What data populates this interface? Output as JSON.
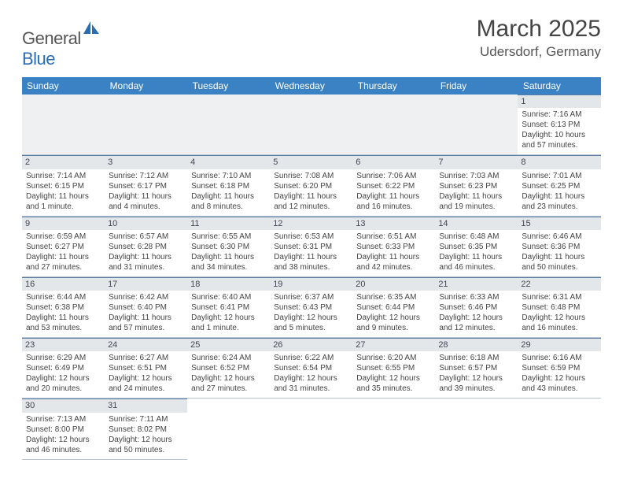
{
  "logo": {
    "text1": "General",
    "text2": "Blue"
  },
  "title": "March 2025",
  "location": "Udersdorf, Germany",
  "colors": {
    "header_bg": "#3b82c4",
    "header_text": "#ffffff",
    "daynum_bg": "#e4e7ea",
    "border": "#b8c4d0",
    "blank_bg": "#eef0f2",
    "text": "#444444",
    "logo_gray": "#555555",
    "logo_blue": "#2a6db5"
  },
  "typography": {
    "title_fontsize": 30,
    "location_fontsize": 17,
    "day_header_fontsize": 12,
    "cell_fontsize": 10,
    "logo_fontsize": 22
  },
  "day_headers": [
    "Sunday",
    "Monday",
    "Tuesday",
    "Wednesday",
    "Thursday",
    "Friday",
    "Saturday"
  ],
  "weeks": [
    [
      {
        "blank": true
      },
      {
        "blank": true
      },
      {
        "blank": true
      },
      {
        "blank": true
      },
      {
        "blank": true
      },
      {
        "blank": true
      },
      {
        "num": "1",
        "sunrise": "Sunrise: 7:16 AM",
        "sunset": "Sunset: 6:13 PM",
        "daylight": "Daylight: 10 hours and 57 minutes."
      }
    ],
    [
      {
        "num": "2",
        "sunrise": "Sunrise: 7:14 AM",
        "sunset": "Sunset: 6:15 PM",
        "daylight": "Daylight: 11 hours and 1 minute."
      },
      {
        "num": "3",
        "sunrise": "Sunrise: 7:12 AM",
        "sunset": "Sunset: 6:17 PM",
        "daylight": "Daylight: 11 hours and 4 minutes."
      },
      {
        "num": "4",
        "sunrise": "Sunrise: 7:10 AM",
        "sunset": "Sunset: 6:18 PM",
        "daylight": "Daylight: 11 hours and 8 minutes."
      },
      {
        "num": "5",
        "sunrise": "Sunrise: 7:08 AM",
        "sunset": "Sunset: 6:20 PM",
        "daylight": "Daylight: 11 hours and 12 minutes."
      },
      {
        "num": "6",
        "sunrise": "Sunrise: 7:06 AM",
        "sunset": "Sunset: 6:22 PM",
        "daylight": "Daylight: 11 hours and 16 minutes."
      },
      {
        "num": "7",
        "sunrise": "Sunrise: 7:03 AM",
        "sunset": "Sunset: 6:23 PM",
        "daylight": "Daylight: 11 hours and 19 minutes."
      },
      {
        "num": "8",
        "sunrise": "Sunrise: 7:01 AM",
        "sunset": "Sunset: 6:25 PM",
        "daylight": "Daylight: 11 hours and 23 minutes."
      }
    ],
    [
      {
        "num": "9",
        "sunrise": "Sunrise: 6:59 AM",
        "sunset": "Sunset: 6:27 PM",
        "daylight": "Daylight: 11 hours and 27 minutes."
      },
      {
        "num": "10",
        "sunrise": "Sunrise: 6:57 AM",
        "sunset": "Sunset: 6:28 PM",
        "daylight": "Daylight: 11 hours and 31 minutes."
      },
      {
        "num": "11",
        "sunrise": "Sunrise: 6:55 AM",
        "sunset": "Sunset: 6:30 PM",
        "daylight": "Daylight: 11 hours and 34 minutes."
      },
      {
        "num": "12",
        "sunrise": "Sunrise: 6:53 AM",
        "sunset": "Sunset: 6:31 PM",
        "daylight": "Daylight: 11 hours and 38 minutes."
      },
      {
        "num": "13",
        "sunrise": "Sunrise: 6:51 AM",
        "sunset": "Sunset: 6:33 PM",
        "daylight": "Daylight: 11 hours and 42 minutes."
      },
      {
        "num": "14",
        "sunrise": "Sunrise: 6:48 AM",
        "sunset": "Sunset: 6:35 PM",
        "daylight": "Daylight: 11 hours and 46 minutes."
      },
      {
        "num": "15",
        "sunrise": "Sunrise: 6:46 AM",
        "sunset": "Sunset: 6:36 PM",
        "daylight": "Daylight: 11 hours and 50 minutes."
      }
    ],
    [
      {
        "num": "16",
        "sunrise": "Sunrise: 6:44 AM",
        "sunset": "Sunset: 6:38 PM",
        "daylight": "Daylight: 11 hours and 53 minutes."
      },
      {
        "num": "17",
        "sunrise": "Sunrise: 6:42 AM",
        "sunset": "Sunset: 6:40 PM",
        "daylight": "Daylight: 11 hours and 57 minutes."
      },
      {
        "num": "18",
        "sunrise": "Sunrise: 6:40 AM",
        "sunset": "Sunset: 6:41 PM",
        "daylight": "Daylight: 12 hours and 1 minute."
      },
      {
        "num": "19",
        "sunrise": "Sunrise: 6:37 AM",
        "sunset": "Sunset: 6:43 PM",
        "daylight": "Daylight: 12 hours and 5 minutes."
      },
      {
        "num": "20",
        "sunrise": "Sunrise: 6:35 AM",
        "sunset": "Sunset: 6:44 PM",
        "daylight": "Daylight: 12 hours and 9 minutes."
      },
      {
        "num": "21",
        "sunrise": "Sunrise: 6:33 AM",
        "sunset": "Sunset: 6:46 PM",
        "daylight": "Daylight: 12 hours and 12 minutes."
      },
      {
        "num": "22",
        "sunrise": "Sunrise: 6:31 AM",
        "sunset": "Sunset: 6:48 PM",
        "daylight": "Daylight: 12 hours and 16 minutes."
      }
    ],
    [
      {
        "num": "23",
        "sunrise": "Sunrise: 6:29 AM",
        "sunset": "Sunset: 6:49 PM",
        "daylight": "Daylight: 12 hours and 20 minutes."
      },
      {
        "num": "24",
        "sunrise": "Sunrise: 6:27 AM",
        "sunset": "Sunset: 6:51 PM",
        "daylight": "Daylight: 12 hours and 24 minutes."
      },
      {
        "num": "25",
        "sunrise": "Sunrise: 6:24 AM",
        "sunset": "Sunset: 6:52 PM",
        "daylight": "Daylight: 12 hours and 27 minutes."
      },
      {
        "num": "26",
        "sunrise": "Sunrise: 6:22 AM",
        "sunset": "Sunset: 6:54 PM",
        "daylight": "Daylight: 12 hours and 31 minutes."
      },
      {
        "num": "27",
        "sunrise": "Sunrise: 6:20 AM",
        "sunset": "Sunset: 6:55 PM",
        "daylight": "Daylight: 12 hours and 35 minutes."
      },
      {
        "num": "28",
        "sunrise": "Sunrise: 6:18 AM",
        "sunset": "Sunset: 6:57 PM",
        "daylight": "Daylight: 12 hours and 39 minutes."
      },
      {
        "num": "29",
        "sunrise": "Sunrise: 6:16 AM",
        "sunset": "Sunset: 6:59 PM",
        "daylight": "Daylight: 12 hours and 43 minutes."
      }
    ],
    [
      {
        "num": "30",
        "sunrise": "Sunrise: 7:13 AM",
        "sunset": "Sunset: 8:00 PM",
        "daylight": "Daylight: 12 hours and 46 minutes."
      },
      {
        "num": "31",
        "sunrise": "Sunrise: 7:11 AM",
        "sunset": "Sunset: 8:02 PM",
        "daylight": "Daylight: 12 hours and 50 minutes."
      },
      {
        "blank": true
      },
      {
        "blank": true
      },
      {
        "blank": true
      },
      {
        "blank": true
      },
      {
        "blank": true
      }
    ]
  ]
}
